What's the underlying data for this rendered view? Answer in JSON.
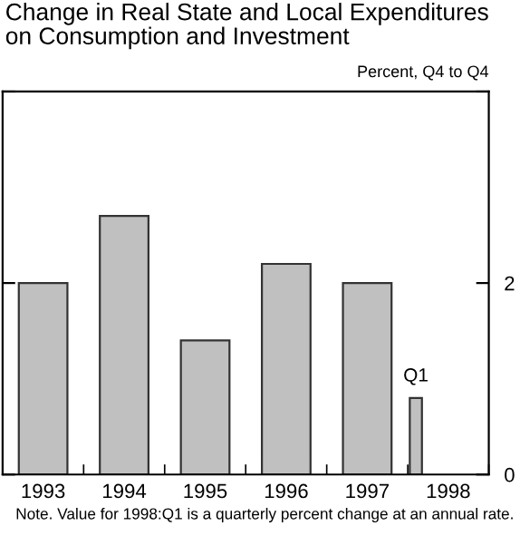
{
  "chart_data": {
    "type": "bar",
    "title": "Change in Real State and Local Expenditures\non Consumption and Investment",
    "ylabel": "Percent, Q4 to Q4",
    "categories": [
      "1993",
      "1994",
      "1995",
      "1996",
      "1997",
      "1998"
    ],
    "values": [
      2.0,
      2.7,
      1.4,
      2.2,
      2.0,
      0.8
    ],
    "color": "#c0c0c0",
    "ylim": [
      0,
      4
    ],
    "yticks": [
      0,
      2,
      {
        "value": 4,
        "label": null
      }
    ],
    "grid": false,
    "legend": false,
    "annotations": [
      "Q1",
      "Note. Value for 1998:Q1 is a quarterly percent change at an annual rate."
    ]
  }
}
